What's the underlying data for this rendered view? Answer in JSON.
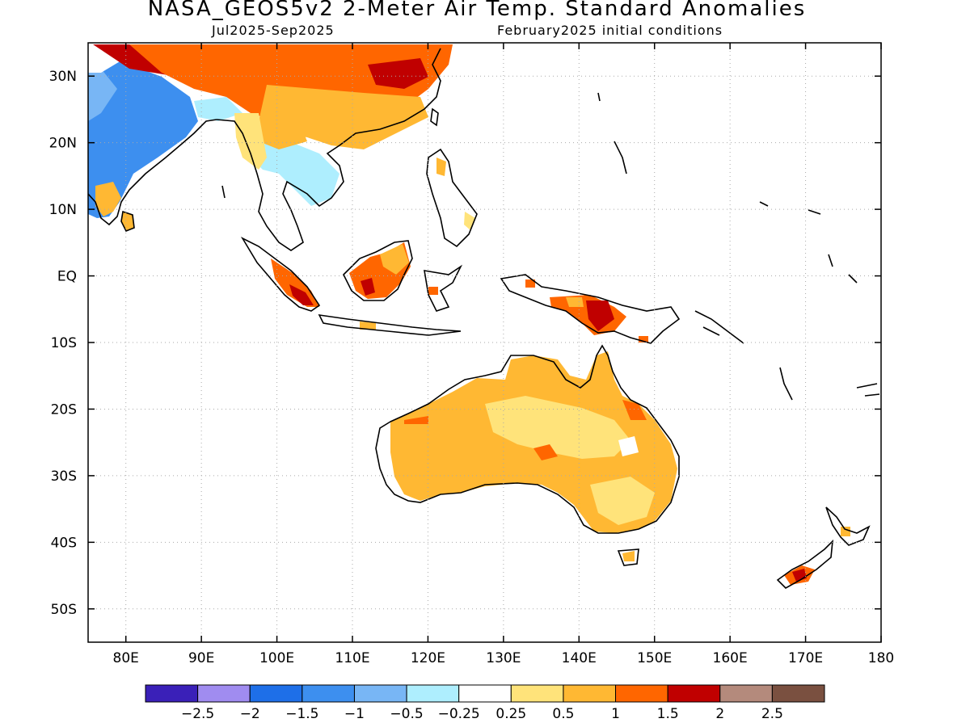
{
  "title": "NASA_GEOS5v2 2-Meter Air Temp. Standard Anomalies",
  "subtitle_left": "Jul2025-Sep2025",
  "subtitle_right": "February2025 initial conditions",
  "map": {
    "lon_range": [
      75,
      180
    ],
    "lat_range": [
      -55,
      35
    ],
    "lon_ticks": [
      {
        "v": 80,
        "label": "80E"
      },
      {
        "v": 90,
        "label": "90E"
      },
      {
        "v": 100,
        "label": "100E"
      },
      {
        "v": 110,
        "label": "110E"
      },
      {
        "v": 120,
        "label": "120E"
      },
      {
        "v": 130,
        "label": "130E"
      },
      {
        "v": 140,
        "label": "140E"
      },
      {
        "v": 150,
        "label": "150E"
      },
      {
        "v": 160,
        "label": "160E"
      },
      {
        "v": 170,
        "label": "170E"
      },
      {
        "v": 180,
        "label": "180"
      }
    ],
    "lat_ticks": [
      {
        "v": 30,
        "label": "30N"
      },
      {
        "v": 20,
        "label": "20N"
      },
      {
        "v": 10,
        "label": "10N"
      },
      {
        "v": 0,
        "label": "EQ"
      },
      {
        "v": -10,
        "label": "10S"
      },
      {
        "v": -20,
        "label": "20S"
      },
      {
        "v": -30,
        "label": "30S"
      },
      {
        "v": -40,
        "label": "40S"
      },
      {
        "v": -50,
        "label": "50S"
      }
    ],
    "grid": "dotted",
    "anomaly_regions": [
      {
        "name": "Australia",
        "level": 1,
        "color": "#ffb833"
      },
      {
        "name": "Australia interior",
        "level": 0.5,
        "color": "#ffe066"
      },
      {
        "name": "Borneo",
        "level": 1.5,
        "color": "#ff6600"
      },
      {
        "name": "New Guinea",
        "level": 1.5,
        "color": "#ff6600"
      },
      {
        "name": "Southern China",
        "level": 1.5,
        "color": "#ff6600"
      },
      {
        "name": "India",
        "level": -1,
        "color": "#3d8fef"
      },
      {
        "name": "Tibet / Himalaya",
        "level": 2,
        "color": "#c00000"
      },
      {
        "name": "Indochina",
        "level": -0.5,
        "color": "#aeeefe"
      }
    ]
  },
  "colorbar": {
    "colors": [
      "#3a20b8",
      "#a08cf0",
      "#1e6fe8",
      "#3d8fef",
      "#78b6f5",
      "#aeeefe",
      "#ffffff",
      "#ffe37a",
      "#ffb833",
      "#ff6600",
      "#c00000",
      "#b48a7c",
      "#7a5040"
    ],
    "labels": [
      "-2.5",
      "-2",
      "-1.5",
      "-1",
      "-0.5",
      "-0.25",
      "0.25",
      "0.5",
      "1",
      "1.5",
      "2",
      "2.5"
    ]
  }
}
